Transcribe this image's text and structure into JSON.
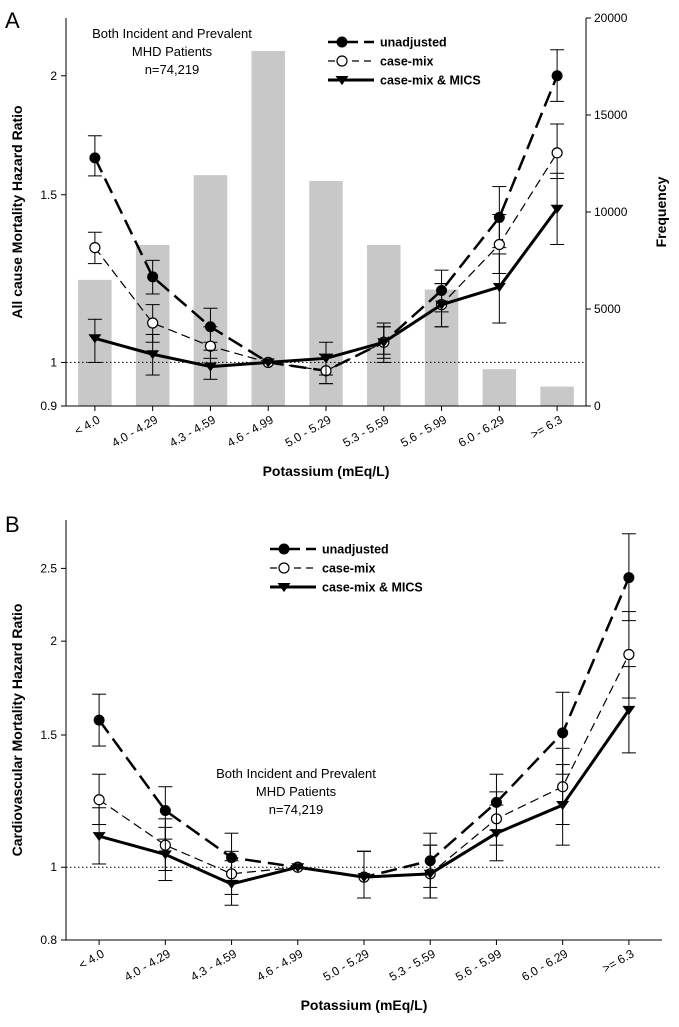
{
  "chart_data": [
    {
      "type": "line",
      "panel_label": "A",
      "annotation": [
        "Both Incident and Prevalent",
        "MHD Patients",
        "n=74,219"
      ],
      "categories": [
        "< 4.0",
        "4.0 - 4.29",
        "4.3 - 4.59",
        "4.6 - 4.99",
        "5.0 - 5.29",
        "5.3 - 5.59",
        "5.6 - 5.99",
        "6.0 - 6.29",
        ">= 6.3"
      ],
      "xlabel": "Potassium (mEq/L)",
      "ylabel": "All cause Mortality Hazard Ratio",
      "y2label": "Frequency",
      "yscale": "log",
      "ylim": [
        0.9,
        2.3
      ],
      "yticks": [
        0.9,
        1,
        1.5,
        2
      ],
      "ytick_labels": [
        "0.9",
        "1",
        "1.5",
        "2"
      ],
      "y2lim": [
        0,
        20000
      ],
      "y2ticks": [
        0,
        5000,
        10000,
        15000,
        20000
      ],
      "y2tick_labels": [
        "0",
        "5000",
        "10000",
        "15000",
        "20000"
      ],
      "reference_line": 1,
      "legend_position": "top-right",
      "bars": {
        "axis": "right",
        "color": "#c8c8c8",
        "values": [
          6500,
          8300,
          11900,
          18300,
          11600,
          8300,
          6000,
          1900,
          1000
        ]
      },
      "series": [
        {
          "name": "unadjusted",
          "marker": "filled-circle",
          "dash": "long-dash",
          "width": 2.5,
          "values": [
            1.64,
            1.23,
            1.09,
            1.0,
            0.98,
            1.05,
            1.19,
            1.42,
            2.0
          ],
          "ci_low": [
            1.57,
            1.18,
            1.05,
            1.0,
            0.95,
            1.02,
            1.13,
            1.32,
            1.88
          ],
          "ci_high": [
            1.73,
            1.28,
            1.14,
            1.0,
            1.02,
            1.09,
            1.25,
            1.53,
            2.13
          ]
        },
        {
          "name": "case-mix",
          "marker": "open-circle",
          "dash": "dash",
          "width": 1.2,
          "values": [
            1.32,
            1.1,
            1.04,
            1.0,
            0.98,
            1.05,
            1.15,
            1.33,
            1.66
          ],
          "ci_low": [
            1.27,
            1.05,
            1.01,
            1.0,
            0.95,
            1.01,
            1.09,
            1.24,
            1.56
          ],
          "ci_high": [
            1.37,
            1.15,
            1.09,
            1.0,
            1.02,
            1.09,
            1.21,
            1.43,
            1.78
          ]
        },
        {
          "name": "case-mix & MICS",
          "marker": "filled-triangle-down",
          "dash": "solid",
          "width": 3,
          "values": [
            1.06,
            1.02,
            0.99,
            1.0,
            1.01,
            1.05,
            1.15,
            1.2,
            1.45
          ],
          "ci_low": [
            1.0,
            0.97,
            0.96,
            1.0,
            0.97,
            1.0,
            1.09,
            1.1,
            1.33
          ],
          "ci_high": [
            1.11,
            1.07,
            1.03,
            1.0,
            1.05,
            1.1,
            1.21,
            1.3,
            1.58
          ]
        }
      ]
    },
    {
      "type": "line",
      "panel_label": "B",
      "annotation": [
        "Both Incident and Prevalent",
        "MHD Patients",
        "n=74,219"
      ],
      "categories": [
        "< 4.0",
        "4.0 - 4.29",
        "4.3 - 4.59",
        "4.6 - 4.99",
        "5.0 - 5.29",
        "5.3 - 5.59",
        "5.6 - 5.99",
        "6.0 - 6.29",
        ">= 6.3"
      ],
      "xlabel": "Potassium (mEq/L)",
      "ylabel": "Cardiovascular Mortality Hazard Ratio",
      "yscale": "log",
      "ylim": [
        0.8,
        2.9
      ],
      "yticks": [
        0.8,
        1,
        1.5,
        2,
        2.5
      ],
      "ytick_labels": [
        "0.8",
        "1",
        "1.5",
        "2",
        "2.5"
      ],
      "reference_line": 1,
      "legend_position": "top-center",
      "series": [
        {
          "name": "unadjusted",
          "marker": "filled-circle",
          "dash": "long-dash",
          "width": 2.5,
          "values": [
            1.57,
            1.19,
            1.03,
            1.0,
            0.97,
            1.02,
            1.22,
            1.51,
            2.43
          ],
          "ci_low": [
            1.45,
            1.09,
            0.96,
            1.0,
            0.91,
            0.94,
            1.12,
            1.33,
            2.13
          ],
          "ci_high": [
            1.7,
            1.28,
            1.11,
            1.0,
            1.05,
            1.11,
            1.33,
            1.71,
            2.78
          ]
        },
        {
          "name": "case-mix",
          "marker": "open-circle",
          "dash": "dash",
          "width": 1.2,
          "values": [
            1.23,
            1.07,
            0.98,
            1.0,
            0.97,
            0.98,
            1.16,
            1.28,
            1.92
          ],
          "ci_low": [
            1.14,
            0.99,
            0.92,
            1.0,
            0.91,
            0.91,
            1.07,
            1.14,
            1.68
          ],
          "ci_high": [
            1.33,
            1.16,
            1.05,
            1.0,
            1.05,
            1.07,
            1.26,
            1.44,
            2.19
          ]
        },
        {
          "name": "case-mix & MICS",
          "marker": "filled-triangle-down",
          "dash": "solid",
          "width": 3,
          "values": [
            1.1,
            1.04,
            0.95,
            1.0,
            0.97,
            0.98,
            1.11,
            1.21,
            1.62
          ],
          "ci_low": [
            1.01,
            0.96,
            0.89,
            1.0,
            0.91,
            0.91,
            1.02,
            1.07,
            1.42
          ],
          "ci_high": [
            1.2,
            1.13,
            1.02,
            1.0,
            1.05,
            1.07,
            1.21,
            1.37,
            1.85
          ]
        }
      ]
    }
  ]
}
